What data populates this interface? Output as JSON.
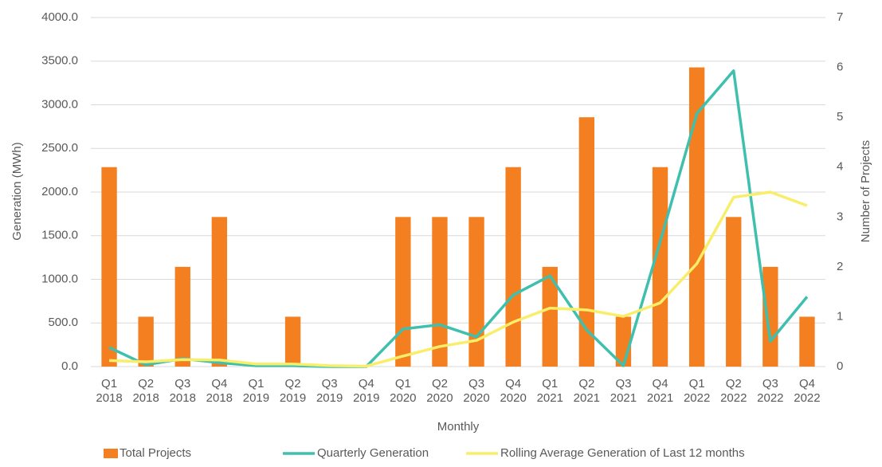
{
  "chart_data": {
    "type": "bar",
    "x_label": "Monthly",
    "y_label": "Generation (MWh)",
    "y2_label": "Number of Projects",
    "categories": [
      "Q1 2018",
      "Q2 2018",
      "Q3 2018",
      "Q4 2018",
      "Q1 2019",
      "Q2 2019",
      "Q3 2019",
      "Q4 2019",
      "Q1 2020",
      "Q2 2020",
      "Q3 2020",
      "Q4 2020",
      "Q1 2021",
      "Q2 2021",
      "Q3 2021",
      "Q4 2021",
      "Q1 2022",
      "Q2 2022",
      "Q3 2022",
      "Q4 2022"
    ],
    "series": [
      {
        "name": "Total Projects",
        "type": "bar",
        "axis": "y2",
        "color": "#f47f20",
        "values": [
          4,
          1,
          2,
          3,
          0,
          1,
          0,
          0,
          3,
          3,
          3,
          4,
          2,
          5,
          1,
          4,
          6,
          3,
          2,
          1
        ]
      },
      {
        "name": "Quarterly Generation",
        "type": "line",
        "axis": "y",
        "color": "#3fbfad",
        "values": [
          220,
          20,
          90,
          45,
          10,
          10,
          0,
          0,
          430,
          480,
          340,
          820,
          1040,
          420,
          10,
          1430,
          2900,
          3390,
          290,
          800
        ]
      },
      {
        "name": "Rolling Average Generation of Last 12 months",
        "type": "line",
        "axis": "y",
        "color": "#f8ee6a",
        "values": [
          70,
          55,
          80,
          75,
          30,
          30,
          10,
          5,
          120,
          230,
          300,
          510,
          670,
          650,
          575,
          730,
          1180,
          1940,
          2000,
          1845
        ]
      }
    ],
    "ylim": [
      0,
      4000
    ],
    "yticks": [
      {
        "value": 0,
        "label": "0.0"
      },
      {
        "value": 500,
        "label": "500.0"
      },
      {
        "value": 1000,
        "label": "1000.0"
      },
      {
        "value": 1500,
        "label": "1500.0"
      },
      {
        "value": 2000,
        "label": "2000.0"
      },
      {
        "value": 2500,
        "label": "2500.0"
      },
      {
        "value": 3000,
        "label": "3000.0"
      },
      {
        "value": 3500,
        "label": "3500.0"
      },
      {
        "value": 4000,
        "label": "4000.0"
      }
    ],
    "y2lim": [
      0,
      7
    ],
    "y2ticks": [
      0,
      1,
      2,
      3,
      4,
      5,
      6,
      7
    ],
    "grid": true,
    "legend": "bottom"
  }
}
